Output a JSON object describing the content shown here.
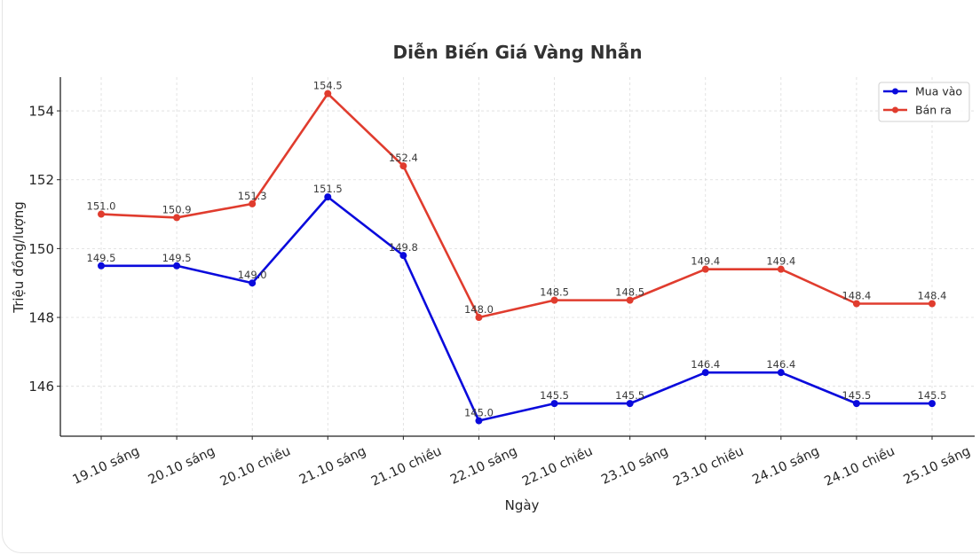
{
  "chart_data": {
    "type": "line",
    "title": "Diễn Biến Giá Vàng Nhẫn",
    "xlabel": "Ngày",
    "ylabel": "Triệu đồng/lượng",
    "categories": [
      "19.10 sáng",
      "20.10 sáng",
      "20.10 chiều",
      "21.10 sáng",
      "21.10 chiều",
      "22.10 sáng",
      "22.10 chiều",
      "23.10 sáng",
      "23.10 chiều",
      "24.10 sáng",
      "24.10 chiều",
      "25.10 sáng"
    ],
    "series": [
      {
        "name": "Mua vào",
        "color": "#0a0adc",
        "values": [
          149.5,
          149.5,
          149.0,
          151.5,
          149.8,
          145.0,
          145.5,
          145.5,
          146.4,
          146.4,
          145.5,
          145.5
        ]
      },
      {
        "name": "Bán ra",
        "color": "#e03c2e",
        "values": [
          151.0,
          150.9,
          151.3,
          154.5,
          152.4,
          148.0,
          148.5,
          148.5,
          149.4,
          149.4,
          148.4,
          148.4
        ]
      }
    ],
    "yticks": [
      146,
      148,
      150,
      152,
      154
    ],
    "ylim": [
      144.55,
      154.98
    ],
    "grid": true,
    "legend_position": "upper right"
  }
}
